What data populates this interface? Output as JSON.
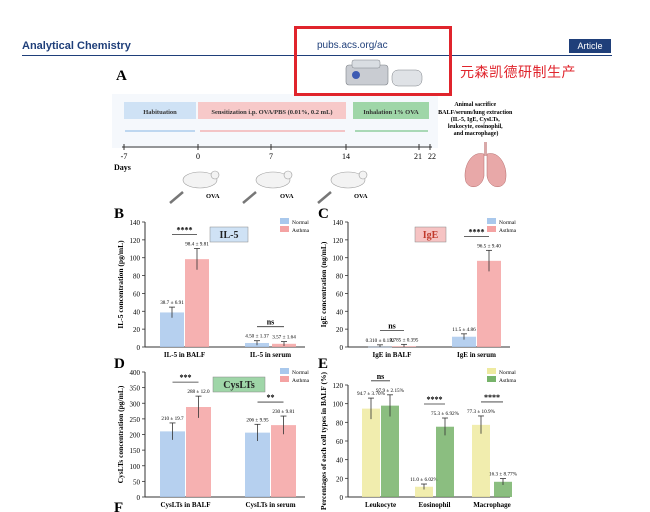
{
  "header": {
    "journal": "Analytical Chemistry",
    "url": "pubs.acs.org/ac",
    "badge": "Article",
    "watermark": "元森凯德研制生产"
  },
  "panelA": {
    "letter": "A",
    "phases": [
      "Habituation",
      "Sensitization i.p. OVA/PBS (0.01%, 0.2 mL)",
      "Inhalation 1% OVA"
    ],
    "sacrifice": [
      "Animal sacrifice",
      "BALF/serum/lung extraction",
      "(IL-5, IgE, CysLTs,",
      "leukocyte, eosinophil,",
      "and macrophage)"
    ],
    "ticks": [
      "-7",
      "0",
      "7",
      "14",
      "21",
      "22"
    ],
    "days_label": "Days",
    "ova_label": "OVA"
  },
  "colors": {
    "normal": "#a9c8ec",
    "asthma": "#f4a3a3",
    "normal_e": "#eeeaa0",
    "asthma_e": "#77b36a"
  },
  "chart_data": [
    {
      "panel": "B",
      "type": "bar",
      "badge": "IL-5",
      "ylabel": "IL-5 concentration (pg/mL)",
      "ylim": [
        0,
        140
      ],
      "yticks": [
        "0",
        "20",
        "40",
        "60",
        "80",
        "100",
        "120",
        "140"
      ],
      "categories": [
        "IL-5 in BALF",
        "IL-5 in serum"
      ],
      "series": [
        {
          "name": "Normal",
          "values": [
            38.7,
            4.5
          ]
        },
        {
          "name": "Asthma",
          "values": [
            98.4,
            3.57
          ]
        }
      ],
      "value_labels": [
        [
          "38.7 ± 6.91",
          "4.50 ± 1.37"
        ],
        [
          "98.4 ± 9.81",
          "3.57 ± 1.64"
        ]
      ],
      "sig": [
        "****",
        "ns"
      ]
    },
    {
      "panel": "C",
      "type": "bar",
      "badge": "IgE",
      "ylabel": "IgE concentration (ng/mL)",
      "ylim": [
        0,
        140
      ],
      "yticks": [
        "0",
        "20",
        "40",
        "60",
        "80",
        "100",
        "120",
        "140"
      ],
      "categories": [
        "IgE in BALF",
        "IgE in serum"
      ],
      "series": [
        {
          "name": "Normal",
          "values": [
            0.31,
            11.5
          ]
        },
        {
          "name": "Asthma",
          "values": [
            0.785,
            96.5
          ]
        }
      ],
      "value_labels": [
        [
          "0.310 ± 0.132",
          "11.5 ± 4.86"
        ],
        [
          "0.785 ± 0.395",
          "96.5 ± 9.40"
        ]
      ],
      "sig": [
        "ns",
        "****"
      ]
    },
    {
      "panel": "D",
      "type": "bar",
      "badge": "CysLTs",
      "ylabel": "CysLTs concentration (pg/mL)",
      "ylim": [
        0,
        400
      ],
      "yticks": [
        "0",
        "50",
        "100",
        "150",
        "200",
        "250",
        "300",
        "350",
        "400"
      ],
      "categories": [
        "CysLTs in BALF",
        "CysLTs in serum"
      ],
      "series": [
        {
          "name": "Normal",
          "values": [
            210,
            206
          ]
        },
        {
          "name": "Asthma",
          "values": [
            288,
            230
          ]
        }
      ],
      "value_labels": [
        [
          "210 ± 19.7",
          "206 ± 9.95"
        ],
        [
          "288 ± 12.0",
          "230 ± 9.81"
        ]
      ],
      "sig": [
        "***",
        "**"
      ]
    },
    {
      "panel": "E",
      "type": "bar",
      "badge": "",
      "ylabel": "Percentages of each cell types in BALF (%)",
      "ylim": [
        0,
        120
      ],
      "yticks": [
        "0",
        "20",
        "40",
        "60",
        "80",
        "100",
        "120"
      ],
      "categories": [
        "Leukocyte",
        "Eosinophil",
        "Macrophage"
      ],
      "series": [
        {
          "name": "Normal",
          "values": [
            94.7,
            11.0,
            77.3
          ]
        },
        {
          "name": "Asthma",
          "values": [
            97.9,
            75.3,
            16.3
          ]
        }
      ],
      "value_labels": [
        [
          "94.7 ± 3.70%",
          "11.0 ± 6.02%",
          "77.3 ± 10.9%"
        ],
        [
          "97.9 ± 2.15%",
          "75.3 ± 6.92%",
          "16.3 ± 8.77%"
        ]
      ],
      "sig": [
        "ns",
        "****",
        "****"
      ]
    }
  ],
  "next_panel_letter": "F"
}
